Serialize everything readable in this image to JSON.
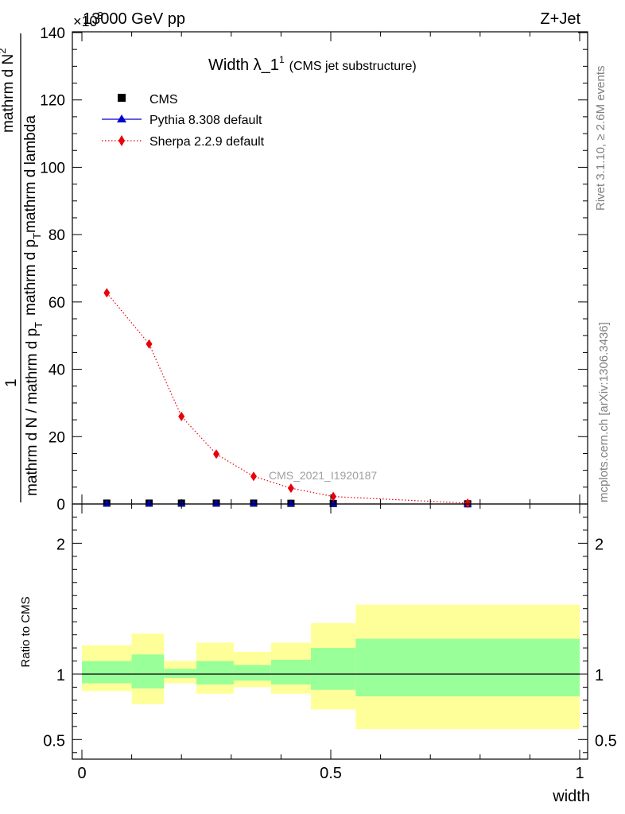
{
  "header": {
    "left": "13000 GeV pp",
    "right": "Z+Jet",
    "exponent": "×10",
    "exponent_power": "3"
  },
  "side_labels": {
    "rivet": "Rivet 3.1.10, ≥ 2.6M events",
    "mcplots": "mcplots.cern.ch [arXiv:1306.3436]"
  },
  "chart_data": [
    {
      "type": "line",
      "title_main": "Width λ_1",
      "title_sup": "1",
      "title_sub": "(CMS jet substructure)",
      "xlabel": "width",
      "ylabel_lines": [
        "1",
        "mathrm d N / mathrm d p",
        "T",
        "mathrm d N",
        "2",
        "mathrm d p",
        "T",
        "mathrm d lambda"
      ],
      "xlim": [
        0,
        1
      ],
      "ylim": [
        0,
        140
      ],
      "y_scale_factor": 1000,
      "x_ticks": [
        "0",
        "0.5",
        "1"
      ],
      "y_ticks": [
        "0",
        "20",
        "40",
        "60",
        "80",
        "100",
        "120",
        "140"
      ],
      "watermark": "CMS_2021_I1920187",
      "legend_position": "top-left",
      "bins": [
        [
          0.0,
          0.1
        ],
        [
          0.1,
          0.165
        ],
        [
          0.165,
          0.23
        ],
        [
          0.23,
          0.305
        ],
        [
          0.305,
          0.38
        ],
        [
          0.38,
          0.46
        ],
        [
          0.46,
          0.55
        ],
        [
          0.55,
          1.0
        ]
      ],
      "series": [
        {
          "name": "CMS",
          "marker": "square",
          "color": "#000000",
          "x": [
            0.05,
            0.135,
            0.2,
            0.27,
            0.345,
            0.42,
            0.505,
            0.775
          ],
          "y": [
            0.25,
            0.25,
            0.25,
            0.25,
            0.25,
            0.2,
            0.15,
            0.05
          ]
        },
        {
          "name": "Pythia 8.308 default",
          "marker": "triangle",
          "color": "#0000cc",
          "x": [
            0.05,
            0.135,
            0.2,
            0.27,
            0.345,
            0.42,
            0.505,
            0.775
          ],
          "y": [
            0.25,
            0.25,
            0.25,
            0.25,
            0.25,
            0.2,
            0.15,
            0.05
          ]
        },
        {
          "name": "Sherpa 2.2.9 default",
          "marker": "diamond",
          "color": "#e8000b",
          "line": "dotted",
          "x": [
            0.05,
            0.135,
            0.2,
            0.27,
            0.345,
            0.42,
            0.505,
            0.775
          ],
          "y": [
            62.7,
            47.5,
            26.0,
            14.8,
            8.2,
            4.7,
            2.2,
            0.25
          ]
        }
      ]
    },
    {
      "type": "area",
      "ylabel": "Ratio to CMS",
      "xlim": [
        0,
        1
      ],
      "ylim": [
        0.35,
        2.3
      ],
      "y_ticks": [
        "0.5",
        "1",
        "2"
      ],
      "y_tick_values": [
        0.5,
        1,
        2
      ],
      "x_ticks": [
        "0",
        "0.5",
        "1"
      ],
      "reference": 1,
      "bands": {
        "inner_color": "#99ff99",
        "outer_color": "#ffff99",
        "inner": [
          [
            0.93,
            1.1
          ],
          [
            0.89,
            1.15
          ],
          [
            0.97,
            1.04
          ],
          [
            0.92,
            1.1
          ],
          [
            0.95,
            1.07
          ],
          [
            0.92,
            1.11
          ],
          [
            0.88,
            1.2
          ],
          [
            0.83,
            1.27
          ]
        ],
        "outer": [
          [
            0.87,
            1.22
          ],
          [
            0.77,
            1.31
          ],
          [
            0.93,
            1.1
          ],
          [
            0.85,
            1.24
          ],
          [
            0.9,
            1.17
          ],
          [
            0.85,
            1.24
          ],
          [
            0.73,
            1.39
          ],
          [
            0.58,
            1.53
          ]
        ]
      }
    }
  ]
}
